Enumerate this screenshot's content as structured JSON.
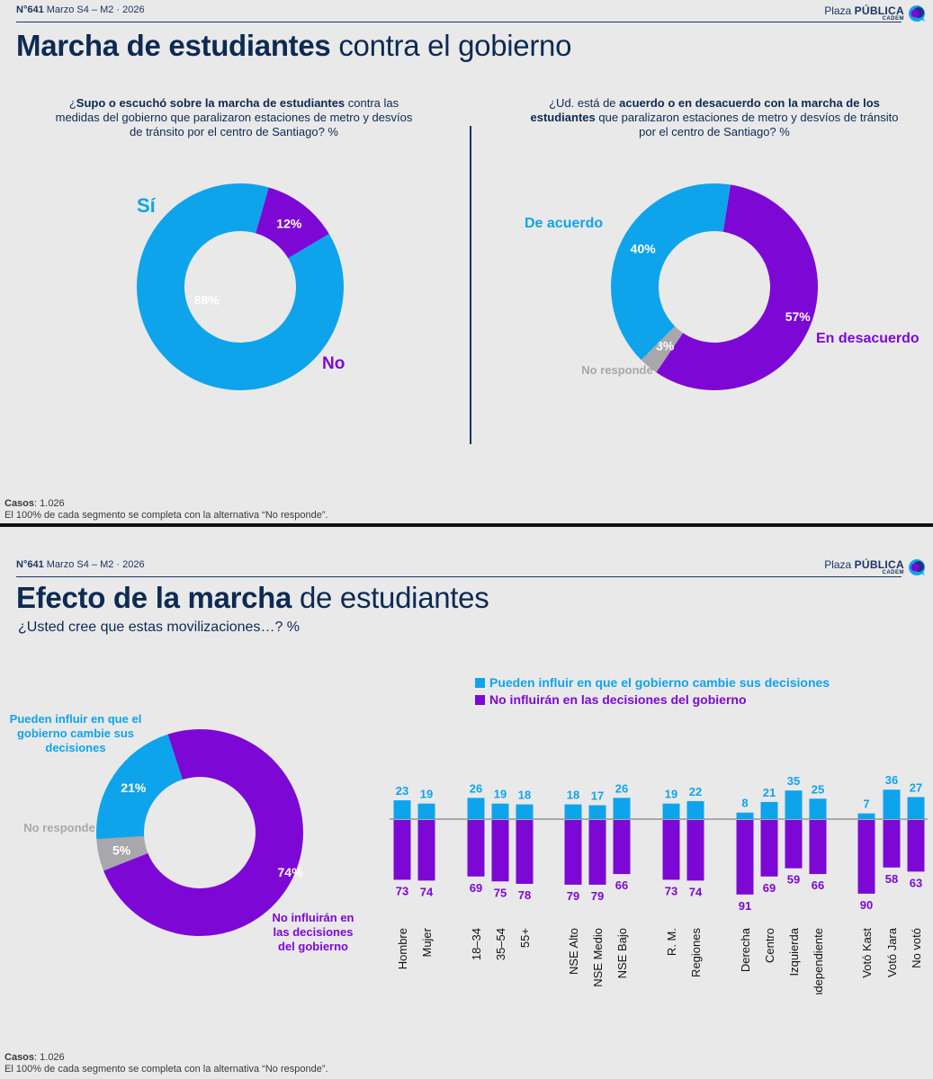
{
  "colors": {
    "blue": "#0ea4ec",
    "purple": "#7d08d6",
    "gray": "#a8a7ab",
    "navy": "#0d2a52"
  },
  "brand": {
    "logo_main": "Plaza",
    "logo_bold": "PÚBLICA",
    "logo_sub": "CADEM",
    "logo_icon": "speech-bubble-icon"
  },
  "panel1": {
    "issue_no": "N°641",
    "issue_date": "Marzo S4 – M2 · 2026",
    "title_bold": "Marcha de estudiantes",
    "title_rest": " contra el gobierno",
    "q1": {
      "pre": "¿",
      "bold": "Supo o escuchó sobre la marcha de estudiantes",
      "rest": " contra las medidas del gobierno que paralizaron estaciones de metro y desvíos de tránsito por el centro de Santiago? %"
    },
    "q2": {
      "pre": "¿Ud. está de ",
      "bold": "acuerdo o en desacuerdo con la marcha de los estudiantes",
      "rest": " que paralizaron estaciones de metro y desvíos de tránsito por el centro de Santiago? %"
    },
    "foot_label": "Casos",
    "foot_cases": ": 1.026",
    "foot_note": "El 100% de cada segmento se completa con la alternativa “No responde”."
  },
  "panel2": {
    "issue_no": "N°641",
    "issue_date": "Marzo S4 – M2 · 2026",
    "title_bold": "Efecto de la marcha",
    "title_rest": " de estudiantes",
    "subtitle": "¿Usted cree que estas movilizaciones…? %",
    "foot_label": "Casos",
    "foot_cases": ": 1.026",
    "foot_note": "El 100% de cada segmento se completa con la alternativa “No responde”."
  },
  "chart_data": [
    {
      "type": "pie",
      "variant": "donut",
      "title": "¿Supo o escuchó sobre la marcha de estudiantes…?",
      "slices": [
        {
          "name": "Sí",
          "value": 88,
          "label": "88%",
          "color": "#0ea4ec"
        },
        {
          "name": "No",
          "value": 12,
          "label": "12%",
          "color": "#7d08d6"
        }
      ]
    },
    {
      "type": "pie",
      "variant": "donut",
      "title": "¿Ud. está de acuerdo o en desacuerdo con la marcha…?",
      "slices": [
        {
          "name": "De acuerdo",
          "value": 40,
          "label": "40%",
          "color": "#0ea4ec"
        },
        {
          "name": "En desacuerdo",
          "value": 57,
          "label": "57%",
          "color": "#7d08d6"
        },
        {
          "name": "No responde",
          "value": 3,
          "label": "3%",
          "color": "#a8a7ab"
        }
      ]
    },
    {
      "type": "pie",
      "variant": "donut",
      "title": "¿Usted cree que estas movilizaciones…?",
      "slices": [
        {
          "name": "Pueden influir en que el gobierno cambie sus decisiones",
          "value": 21,
          "label": "21%",
          "color": "#0ea4ec"
        },
        {
          "name": "No influirán en las decisiones del gobierno",
          "value": 74,
          "label": "74%",
          "color": "#7d08d6"
        },
        {
          "name": "No responde",
          "value": 5,
          "label": "5%",
          "color": "#a8a7ab"
        }
      ]
    },
    {
      "type": "bar",
      "variant": "diverging",
      "categories": [
        "Hombre",
        "Mujer",
        "18–34",
        "35–54",
        "55+",
        "NSE Alto",
        "NSE Medio",
        "NSE Bajo",
        "R. M.",
        "Regiones",
        "Derecha",
        "Centro",
        "Izquierda",
        "Independiente",
        "Votó Kast",
        "Votó Jara",
        "No votó"
      ],
      "groups": [
        [
          0,
          1
        ],
        [
          2,
          3,
          4
        ],
        [
          5,
          6,
          7
        ],
        [
          8,
          9
        ],
        [
          10,
          11,
          12,
          13
        ],
        [
          14,
          15,
          16
        ]
      ],
      "series": [
        {
          "name": "Pueden influir en que el gobierno cambie sus decisiones",
          "color": "#0ea4ec",
          "values": [
            23,
            19,
            26,
            19,
            18,
            18,
            17,
            26,
            19,
            22,
            8,
            21,
            35,
            25,
            7,
            36,
            27
          ]
        },
        {
          "name": "No influirán en las decisiones del gobierno",
          "color": "#7d08d6",
          "values": [
            73,
            74,
            69,
            75,
            78,
            79,
            79,
            66,
            73,
            74,
            91,
            69,
            59,
            66,
            90,
            58,
            63
          ]
        }
      ]
    }
  ]
}
